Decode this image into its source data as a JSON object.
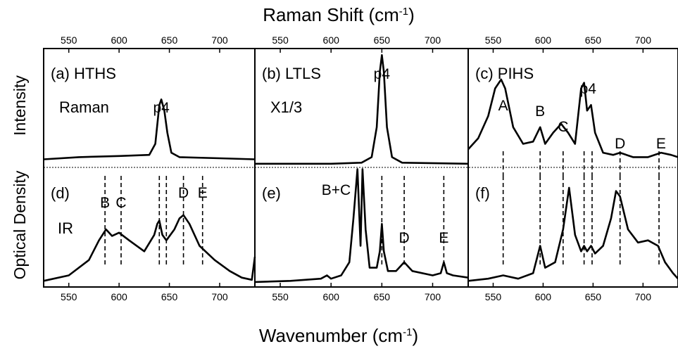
{
  "figure": {
    "top_axis_label": "Raman Shift (cm",
    "top_axis_sup": "-1",
    "top_axis_close": ")",
    "bottom_axis_label": "Wavenumber (cm",
    "bottom_axis_sup": "-1",
    "bottom_axis_close": ")",
    "left_label_top": "Intensity",
    "left_label_bottom": "Optical Density"
  },
  "chart_data": [
    {
      "type": "line",
      "panel": "a",
      "title": "(a) HTHS",
      "subtitle": "Raman",
      "axis": "Raman Shift (cm-1)",
      "xlim": [
        525,
        735
      ],
      "xticks": [
        550,
        600,
        650,
        700
      ],
      "peak_labels": [
        {
          "label": "p4",
          "x": 642
        }
      ],
      "x": [
        525,
        560,
        600,
        630,
        636,
        640,
        642,
        645,
        648,
        652,
        660,
        700,
        735
      ],
      "y": [
        0.06,
        0.08,
        0.09,
        0.1,
        0.2,
        0.55,
        0.6,
        0.5,
        0.3,
        0.12,
        0.08,
        0.07,
        0.06
      ],
      "ylim": [
        0,
        1
      ]
    },
    {
      "type": "line",
      "panel": "b",
      "title": "(b) LTLS",
      "subtitle": "X1/3",
      "axis": "Raman Shift (cm-1)",
      "xlim": [
        525,
        735
      ],
      "xticks": [
        550,
        600,
        650,
        700
      ],
      "peak_labels": [
        {
          "label": "p4",
          "x": 650
        }
      ],
      "x": [
        525,
        600,
        630,
        640,
        645,
        648,
        650,
        652,
        655,
        660,
        670,
        735
      ],
      "y": [
        0.02,
        0.02,
        0.03,
        0.08,
        0.35,
        0.85,
        1.0,
        0.85,
        0.35,
        0.08,
        0.03,
        0.02
      ],
      "ylim": [
        0,
        1
      ]
    },
    {
      "type": "line",
      "panel": "c",
      "title": "(c) PIHS",
      "axis": "Raman Shift (cm-1)",
      "xlim": [
        525,
        735
      ],
      "xticks": [
        550,
        600,
        650,
        700
      ],
      "peak_labels": [
        {
          "label": "A",
          "x": 560
        },
        {
          "label": "B",
          "x": 597
        },
        {
          "label": "C",
          "x": 620
        },
        {
          "label": "p4",
          "x": 645
        },
        {
          "label": "D",
          "x": 677
        },
        {
          "label": "E",
          "x": 718
        }
      ],
      "dashed_lines": [
        560,
        597,
        620,
        641,
        649,
        677,
        716
      ],
      "x": [
        525,
        535,
        545,
        552,
        558,
        562,
        570,
        580,
        590,
        597,
        602,
        610,
        618,
        625,
        632,
        638,
        641,
        644,
        648,
        652,
        660,
        670,
        677,
        690,
        705,
        718,
        728,
        735
      ],
      "y": [
        0.15,
        0.25,
        0.45,
        0.7,
        0.78,
        0.7,
        0.35,
        0.2,
        0.22,
        0.35,
        0.2,
        0.3,
        0.38,
        0.3,
        0.2,
        0.7,
        0.75,
        0.5,
        0.55,
        0.3,
        0.12,
        0.1,
        0.12,
        0.08,
        0.08,
        0.12,
        0.1,
        0.08
      ],
      "ylim": [
        0,
        1
      ]
    },
    {
      "type": "line",
      "panel": "d",
      "title": "(d)",
      "subtitle": "IR",
      "axis": "Wavenumber (cm-1)",
      "xlim": [
        525,
        735
      ],
      "xticks": [
        550,
        600,
        650,
        700
      ],
      "peak_labels": [
        {
          "label": "B",
          "x": 586
        },
        {
          "label": "C",
          "x": 602
        },
        {
          "label": "D",
          "x": 664
        },
        {
          "label": "E",
          "x": 683
        }
      ],
      "dashed_lines": [
        586,
        602,
        640,
        647,
        664,
        683
      ],
      "x": [
        525,
        550,
        570,
        580,
        587,
        593,
        600,
        610,
        625,
        635,
        638,
        640,
        643,
        647,
        655,
        660,
        664,
        670,
        680,
        695,
        710,
        722,
        732,
        735
      ],
      "y": [
        0.03,
        0.08,
        0.22,
        0.4,
        0.5,
        0.44,
        0.47,
        0.4,
        0.3,
        0.45,
        0.55,
        0.58,
        0.45,
        0.4,
        0.5,
        0.6,
        0.63,
        0.55,
        0.35,
        0.22,
        0.12,
        0.06,
        0.04,
        0.25
      ],
      "ylim": [
        0,
        1
      ]
    },
    {
      "type": "line",
      "panel": "e",
      "title": "(e)",
      "peak_labels": [
        {
          "label": "B+C",
          "x": 605
        },
        {
          "label": "D",
          "x": 672
        },
        {
          "label": "E",
          "x": 711
        }
      ],
      "dashed_lines": [
        650,
        672,
        711
      ],
      "axis": "Wavenumber (cm-1)",
      "xlim": [
        525,
        735
      ],
      "xticks": [
        550,
        600,
        650,
        700
      ],
      "x": [
        525,
        560,
        590,
        596,
        600,
        610,
        618,
        622,
        626,
        629,
        631,
        634,
        638,
        645,
        648,
        650,
        652,
        656,
        664,
        672,
        680,
        700,
        708,
        711,
        714,
        720,
        735
      ],
      "y": [
        0.02,
        0.03,
        0.05,
        0.08,
        0.05,
        0.08,
        0.2,
        0.6,
        1.05,
        0.35,
        1.05,
        0.5,
        0.15,
        0.15,
        0.3,
        0.55,
        0.3,
        0.12,
        0.12,
        0.2,
        0.12,
        0.08,
        0.1,
        0.2,
        0.1,
        0.08,
        0.06
      ],
      "ylim": [
        0,
        1
      ]
    },
    {
      "type": "line",
      "panel": "f",
      "title": "(f)",
      "axis": "Wavenumber (cm-1)",
      "xlim": [
        525,
        735
      ],
      "xticks": [
        550,
        600,
        650,
        700
      ],
      "dashed_lines": [
        560,
        597,
        620,
        641,
        649,
        677,
        716
      ],
      "x": [
        525,
        545,
        560,
        575,
        590,
        597,
        602,
        612,
        620,
        626,
        632,
        638,
        641,
        644,
        648,
        652,
        660,
        668,
        673,
        677,
        685,
        695,
        705,
        715,
        722,
        730,
        735
      ],
      "y": [
        0.03,
        0.05,
        0.08,
        0.05,
        0.1,
        0.35,
        0.15,
        0.2,
        0.5,
        0.88,
        0.45,
        0.3,
        0.35,
        0.3,
        0.35,
        0.28,
        0.35,
        0.6,
        0.85,
        0.8,
        0.5,
        0.38,
        0.4,
        0.35,
        0.2,
        0.1,
        0.05
      ],
      "ylim": [
        0,
        1
      ]
    }
  ]
}
